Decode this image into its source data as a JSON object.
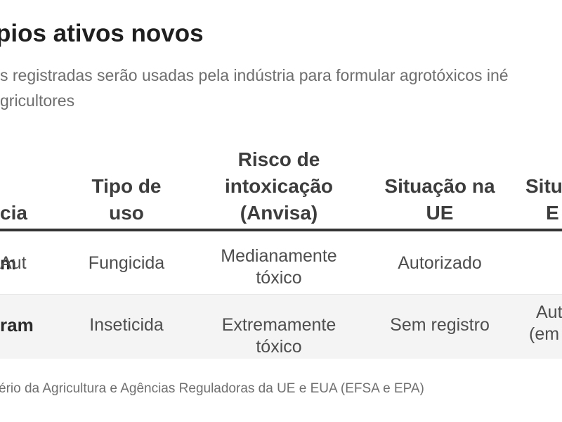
{
  "colors": {
    "background": "#ffffff",
    "title_text": "#1f1f1f",
    "subtitle_text": "#6e6e6e",
    "header_text": "#3d3d3d",
    "body_text": "#4e4e4e",
    "row_label_text": "#2b2b2b",
    "header_rule": "#343434",
    "row_stripe": "#f4f4f4",
    "row_divider": "#e7e7e7",
    "source_text": "#6f6f6f"
  },
  "chart_data": {
    "type": "table",
    "title": "pios ativos novos",
    "subtitle_lines": [
      "s registradas serão usadas pela indústria para formular agrotóxicos iné",
      "gricultores"
    ],
    "columns": [
      {
        "key": "substancia",
        "lines": [
          "cia"
        ]
      },
      {
        "key": "tipo_de_uso",
        "lines": [
          "Tipo de",
          "uso"
        ]
      },
      {
        "key": "risco_intoxicacao_anvisa",
        "lines": [
          "Risco de",
          "intoxicação",
          "(Anvisa)"
        ]
      },
      {
        "key": "situacao_na_ue",
        "lines": [
          "Situação na",
          "UE"
        ]
      },
      {
        "key": "situacao_eua",
        "lines": [
          "Situa",
          "E"
        ]
      }
    ],
    "rows": [
      {
        "substancia": "m",
        "tipo_de_uso": "Fungicida",
        "risco_lines": [
          "Medianamente",
          "tóxico"
        ],
        "situacao_na_ue": "Autorizado",
        "situacao_eua_lines": [
          "Aut"
        ]
      },
      {
        "substancia": "ram",
        "tipo_de_uso": "Inseticida",
        "risco_lines": [
          "Extremamente tóxico"
        ],
        "situacao_na_ue": "Sem registro",
        "situacao_eua_lines": [
          "Aut",
          "(em"
        ]
      }
    ],
    "source": "ério da Agricultura e Agências Reguladoras da UE e EUA (EFSA e EPA)"
  }
}
